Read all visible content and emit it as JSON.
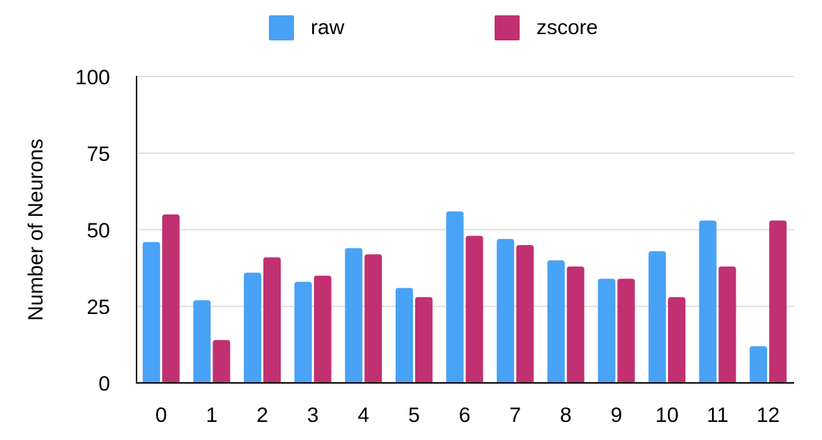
{
  "chart_data": {
    "type": "bar",
    "title": "",
    "xlabel": "",
    "ylabel": "Number of Neurons",
    "ylim": [
      0,
      100
    ],
    "yticks": [
      0,
      25,
      50,
      75,
      100
    ],
    "categories": [
      "0",
      "1",
      "2",
      "3",
      "4",
      "5",
      "6",
      "7",
      "8",
      "9",
      "10",
      "11",
      "12"
    ],
    "series": [
      {
        "name": "raw",
        "color": "#48a2f6",
        "values": [
          46,
          27,
          36,
          33,
          44,
          31,
          56,
          47,
          40,
          34,
          43,
          53,
          12
        ]
      },
      {
        "name": "zscore",
        "color": "#c13071",
        "values": [
          55,
          14,
          41,
          35,
          42,
          28,
          48,
          45,
          38,
          34,
          28,
          38,
          53
        ]
      }
    ],
    "grid": true,
    "legend_position": "top"
  }
}
